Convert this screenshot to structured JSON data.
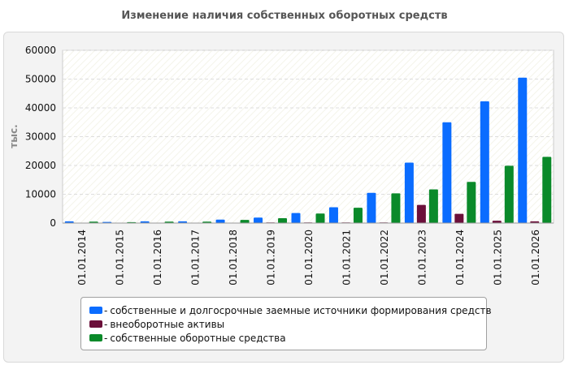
{
  "chart_data": {
    "type": "bar",
    "title": "Изменение наличия собственных оборотных средств",
    "xlabel": "",
    "ylabel": "тыс.",
    "ylim": [
      0,
      60000
    ],
    "yticks": [
      "0",
      "10000",
      "20000",
      "30000",
      "40000",
      "50000",
      "60000"
    ],
    "grid": true,
    "legend_position": "bottom",
    "categories": [
      "01.01.2014",
      "01.01.2015",
      "01.01.2016",
      "01.01.2017",
      "01.01.2018",
      "01.01.2019",
      "01.01.2020",
      "01.01.2021",
      "01.01.2022",
      "01.01.2023",
      "01.01.2024",
      "01.01.2025",
      "01.01.2026"
    ],
    "series": [
      {
        "name": "собственные и долгосрочные заемные источники формирования средств",
        "color": "#0a6cff",
        "values": [
          600,
          400,
          600,
          600,
          1200,
          1900,
          3500,
          5500,
          10500,
          21000,
          35000,
          42300,
          50500
        ]
      },
      {
        "name": "внеоборотные активы",
        "color": "#6b0f3a",
        "values": [
          100,
          100,
          100,
          100,
          100,
          200,
          200,
          200,
          200,
          6300,
          3200,
          800,
          600
        ]
      },
      {
        "name": "собственные оборотные средства",
        "color": "#0a8a2a",
        "values": [
          500,
          300,
          500,
          500,
          1100,
          1700,
          3300,
          5300,
          10300,
          11700,
          14300,
          19900,
          23000
        ]
      }
    ]
  }
}
